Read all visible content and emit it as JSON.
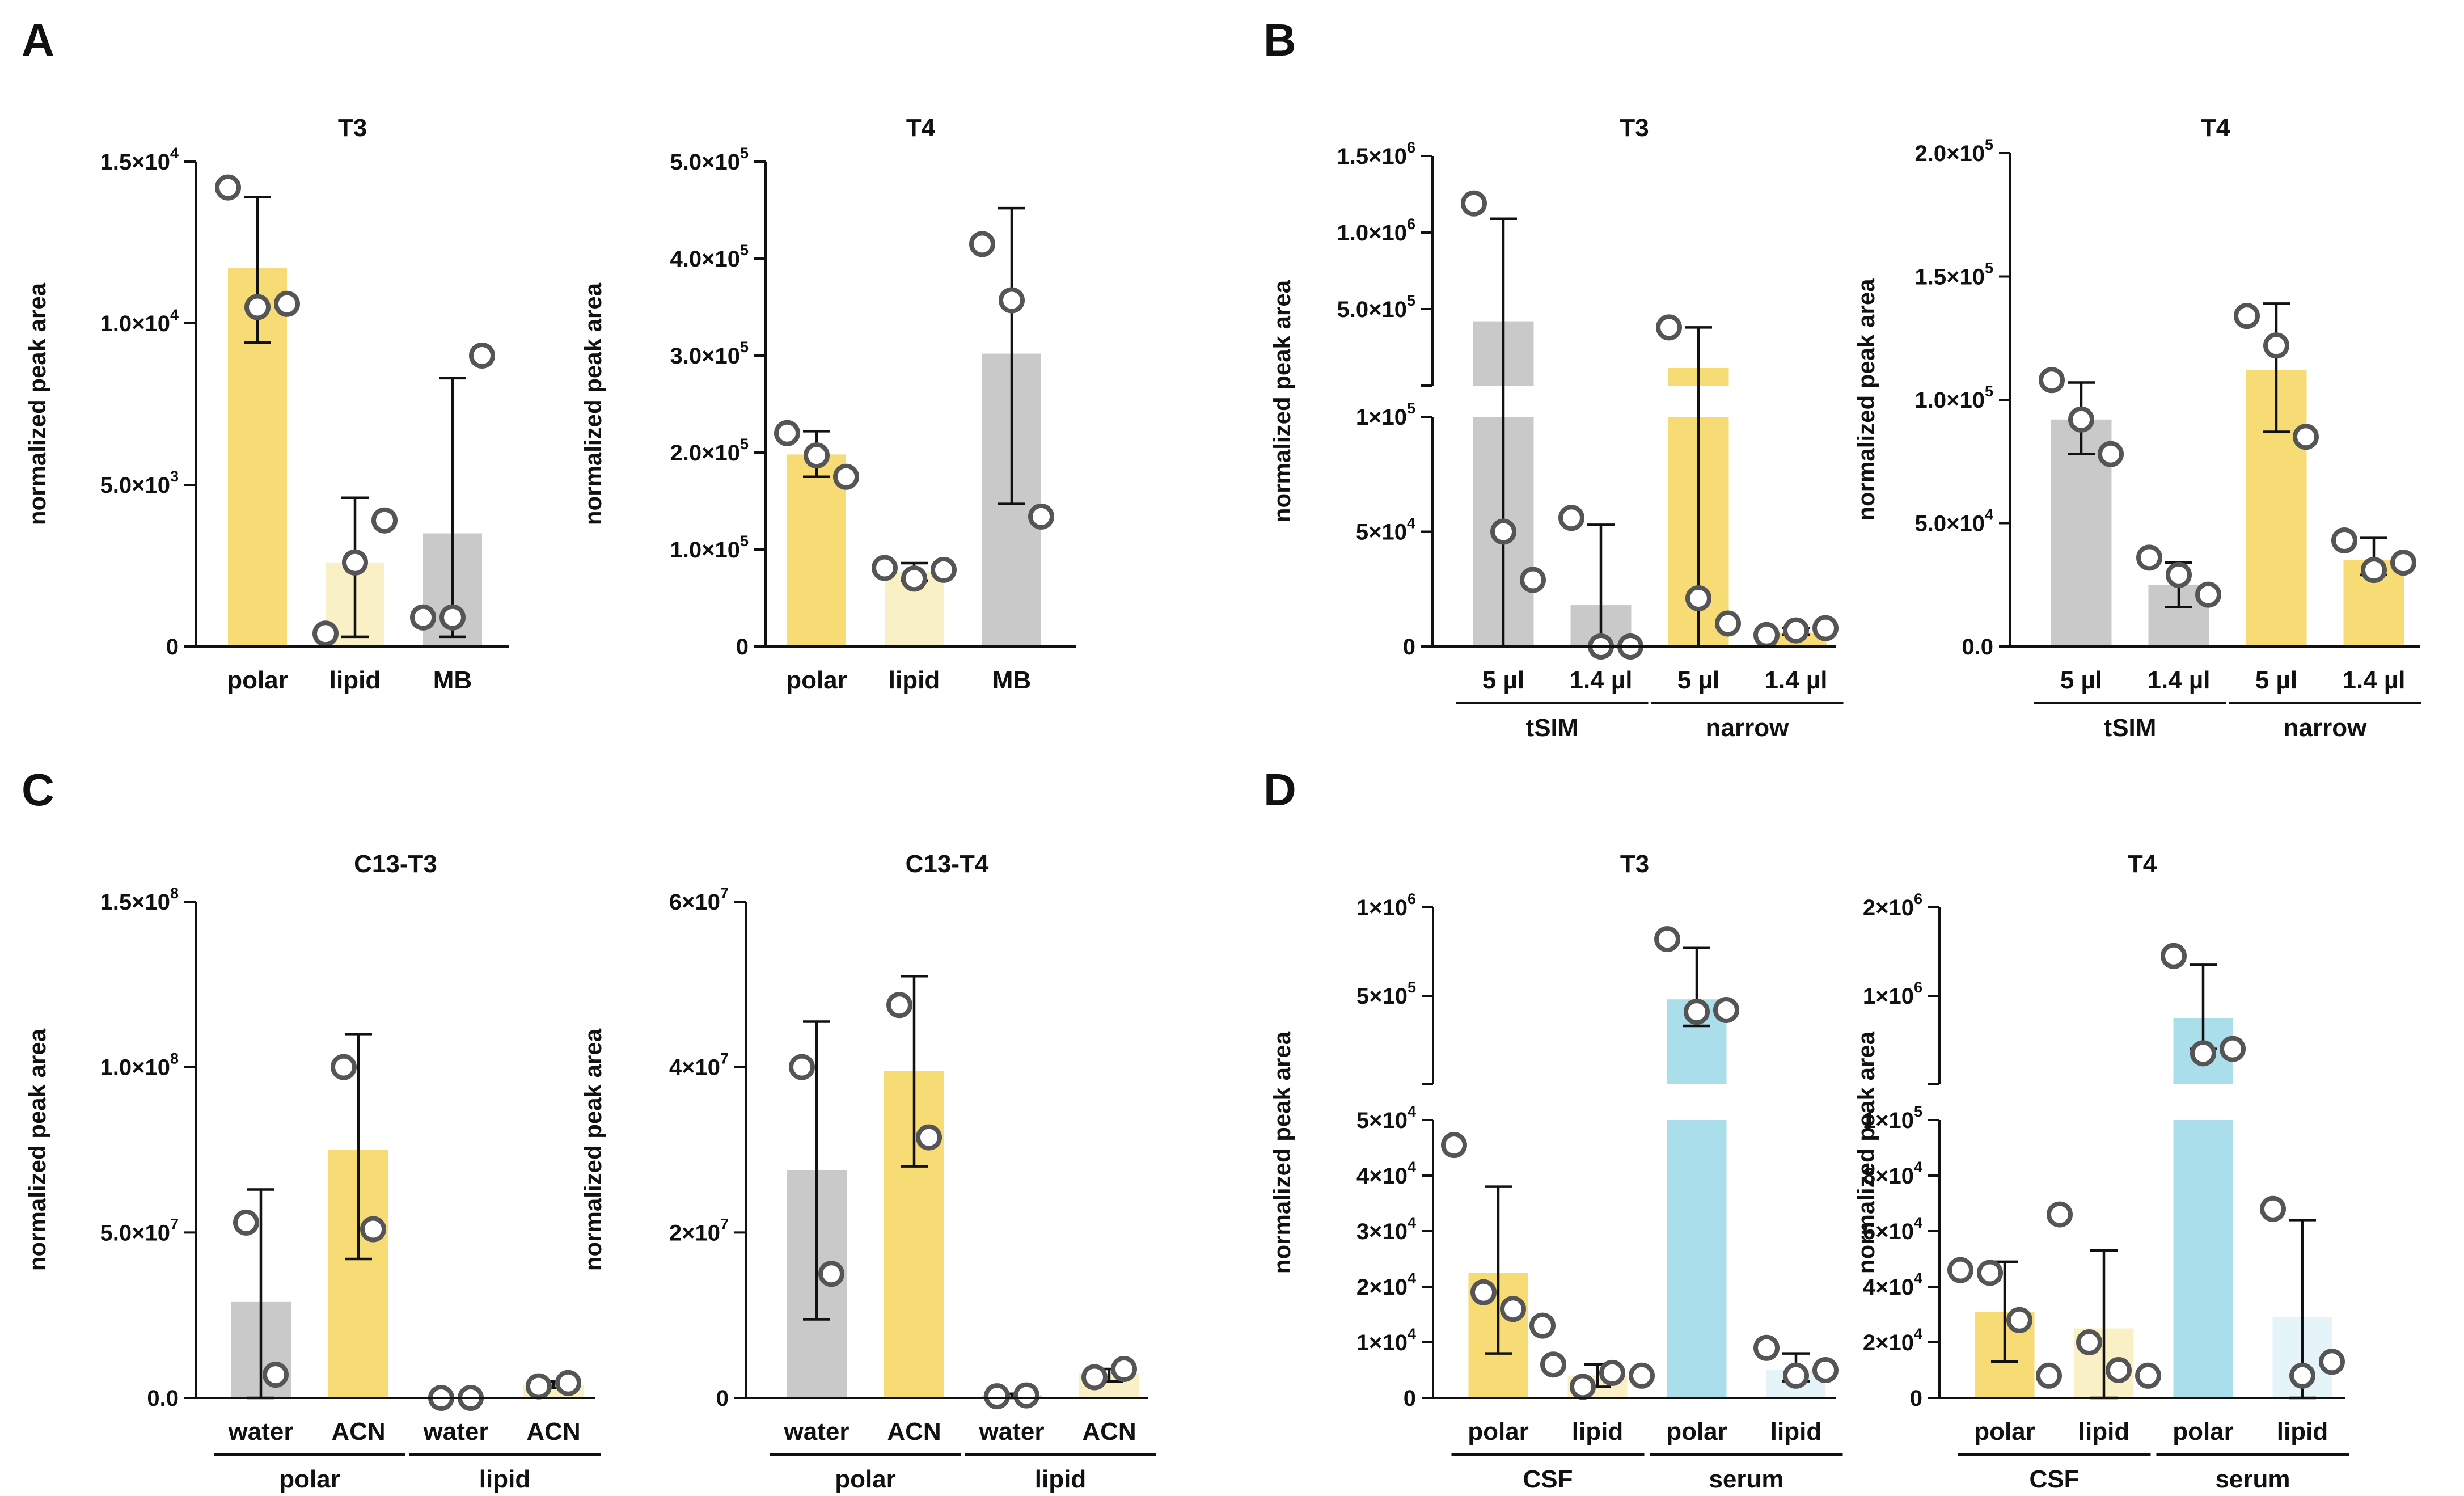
{
  "panel_labels": [
    "A",
    "B",
    "C",
    "D"
  ],
  "colors": {
    "yellow": "#F7DB74",
    "light_yellow": "#FAF0C6",
    "grey": "#C9C9C9",
    "blue": "#AADEEA",
    "light_blue": "#E4F4F8",
    "point_edge": "#555555"
  },
  "chart_data": [
    {
      "id": "A-T3",
      "panel": "A",
      "type": "bar",
      "title": "T3",
      "xlabel": "",
      "ylabel": "normalized peak area",
      "ylim": [
        0,
        15000
      ],
      "y_ticks": [
        {
          "v": 0,
          "m": "0",
          "e": ""
        },
        {
          "v": 5000,
          "m": "5.0×10",
          "e": "3"
        },
        {
          "v": 10000,
          "m": "1.0×10",
          "e": "4"
        },
        {
          "v": 15000,
          "m": "1.5×10",
          "e": "4"
        }
      ],
      "categories": [
        "polar",
        "lipid",
        "MB"
      ],
      "bars": [
        {
          "label": "polar",
          "value": 11700,
          "color": "yellow",
          "err": [
            9400,
            13900
          ],
          "points": [
            14200,
            10500,
            10600
          ]
        },
        {
          "label": "lipid",
          "value": 2600,
          "color": "light_yellow",
          "err": [
            300,
            4600
          ],
          "points": [
            400,
            2600,
            3900
          ]
        },
        {
          "label": "MB",
          "value": 3500,
          "color": "grey",
          "err": [
            300,
            8300
          ],
          "points": [
            900,
            900,
            9000
          ]
        }
      ]
    },
    {
      "id": "A-T4",
      "panel": "A",
      "type": "bar",
      "title": "T4",
      "xlabel": "",
      "ylabel": "normalized peak area",
      "ylim": [
        0,
        500000
      ],
      "y_ticks": [
        {
          "v": 0,
          "m": "0",
          "e": ""
        },
        {
          "v": 100000,
          "m": "1.0×10",
          "e": "5"
        },
        {
          "v": 200000,
          "m": "2.0×10",
          "e": "5"
        },
        {
          "v": 300000,
          "m": "3.0×10",
          "e": "5"
        },
        {
          "v": 400000,
          "m": "4.0×10",
          "e": "5"
        },
        {
          "v": 500000,
          "m": "5.0×10",
          "e": "5"
        }
      ],
      "categories": [
        "polar",
        "lipid",
        "MB"
      ],
      "bars": [
        {
          "label": "polar",
          "value": 198000,
          "color": "yellow",
          "err": [
            175000,
            222000
          ],
          "points": [
            220000,
            197000,
            175000
          ]
        },
        {
          "label": "lipid",
          "value": 77000,
          "color": "light_yellow",
          "err": [
            68000,
            86000
          ],
          "points": [
            81000,
            70000,
            79000
          ]
        },
        {
          "label": "MB",
          "value": 302000,
          "color": "grey",
          "err": [
            147000,
            452000
          ],
          "points": [
            415000,
            357000,
            134000
          ]
        }
      ]
    },
    {
      "id": "B-T3",
      "panel": "B",
      "type": "bar",
      "title": "T3",
      "xlabel": "",
      "ylabel": "normalized peak area",
      "y_break": {
        "lower": [
          0,
          100000
        ],
        "upper": [
          0,
          1500000
        ]
      },
      "y_ticks": [
        {
          "v": 0,
          "m": "0",
          "e": "",
          "seg": "lower"
        },
        {
          "v": 50000,
          "m": "5×10",
          "e": "4",
          "seg": "lower"
        },
        {
          "v": 100000,
          "m": "1×10",
          "e": "5",
          "seg": "lower"
        },
        {
          "v": 500000,
          "m": "5.0×10",
          "e": "5",
          "seg": "upper"
        },
        {
          "v": 1000000,
          "m": "1.0×10",
          "e": "6",
          "seg": "upper"
        },
        {
          "v": 1500000,
          "m": "1.5×10",
          "e": "6",
          "seg": "upper"
        }
      ],
      "categories": [
        "5 µl",
        "1.4 µl",
        "5 µl",
        "1.4 µl"
      ],
      "groups": [
        {
          "label": "tSIM",
          "span": [
            0,
            1
          ]
        },
        {
          "label": "narrow",
          "span": [
            2,
            3
          ]
        }
      ],
      "bars": [
        {
          "label": "5 µl",
          "value": 420000,
          "color": "grey",
          "err": [
            0,
            1090000
          ],
          "points": [
            1190000,
            50000,
            29000
          ]
        },
        {
          "label": "1.4 µl",
          "value": 18000,
          "color": "grey",
          "err": [
            0,
            53000
          ],
          "points": [
            56000,
            0,
            0
          ]
        },
        {
          "label": "5 µl",
          "value": 115000,
          "color": "yellow",
          "err": [
            0,
            380000
          ],
          "points": [
            380000,
            21000,
            10000
          ]
        },
        {
          "label": "1.4 µl",
          "value": 6000,
          "color": "yellow",
          "err": [
            5000,
            8000
          ],
          "points": [
            5000,
            7000,
            8000
          ]
        }
      ]
    },
    {
      "id": "B-T4",
      "panel": "B",
      "type": "bar",
      "title": "T4",
      "xlabel": "",
      "ylabel": "normalized peak area",
      "ylim": [
        0,
        200000
      ],
      "y_ticks": [
        {
          "v": 0,
          "m": "0.0",
          "e": ""
        },
        {
          "v": 50000,
          "m": "5.0×10",
          "e": "4"
        },
        {
          "v": 100000,
          "m": "1.0×10",
          "e": "5"
        },
        {
          "v": 150000,
          "m": "1.5×10",
          "e": "5"
        },
        {
          "v": 200000,
          "m": "2.0×10",
          "e": "5"
        }
      ],
      "categories": [
        "5 µl",
        "1.4 µl",
        "5 µl",
        "1.4 µl"
      ],
      "groups": [
        {
          "label": "tSIM",
          "span": [
            0,
            1
          ]
        },
        {
          "label": "narrow",
          "span": [
            2,
            3
          ]
        }
      ],
      "bars": [
        {
          "label": "5 µl",
          "value": 92000,
          "color": "grey",
          "err": [
            78000,
            107000
          ],
          "points": [
            108000,
            92000,
            78000
          ]
        },
        {
          "label": "1.4 µl",
          "value": 25000,
          "color": "grey",
          "err": [
            16000,
            34000
          ],
          "points": [
            36000,
            29000,
            21000
          ]
        },
        {
          "label": "5 µl",
          "value": 112000,
          "color": "yellow",
          "err": [
            87000,
            139000
          ],
          "points": [
            134000,
            122000,
            85000
          ]
        },
        {
          "label": "1.4 µl",
          "value": 35000,
          "color": "yellow",
          "err": [
            29000,
            44000
          ],
          "points": [
            43000,
            31000,
            34000
          ]
        }
      ]
    },
    {
      "id": "C-C13-T3",
      "panel": "C",
      "type": "bar",
      "title": "C13-T3",
      "xlabel": "",
      "ylabel": "normalized peak area",
      "ylim": [
        0,
        150000000
      ],
      "y_ticks": [
        {
          "v": 0,
          "m": "0.0",
          "e": ""
        },
        {
          "v": 50000000,
          "m": "5.0×10",
          "e": "7"
        },
        {
          "v": 100000000,
          "m": "1.0×10",
          "e": "8"
        },
        {
          "v": 150000000,
          "m": "1.5×10",
          "e": "8"
        }
      ],
      "categories": [
        "water",
        "ACN",
        "water",
        "ACN"
      ],
      "groups": [
        {
          "label": "polar",
          "span": [
            0,
            1
          ]
        },
        {
          "label": "lipid",
          "span": [
            2,
            3
          ]
        }
      ],
      "bars": [
        {
          "label": "water",
          "value": 29000000,
          "color": "grey",
          "err": [
            0,
            63000000
          ],
          "points": [
            53000000,
            7000000
          ]
        },
        {
          "label": "ACN",
          "value": 75000000,
          "color": "yellow",
          "err": [
            42000000,
            110000000
          ],
          "points": [
            100000000,
            51000000
          ]
        },
        {
          "label": "water",
          "value": 0,
          "color": "grey",
          "err": [
            0,
            0
          ],
          "points": [
            0,
            0
          ]
        },
        {
          "label": "ACN",
          "value": 4000000,
          "color": "light_yellow",
          "err": [
            3000000,
            5000000
          ],
          "points": [
            3500000,
            4500000
          ]
        }
      ]
    },
    {
      "id": "C-C13-T4",
      "panel": "C",
      "type": "bar",
      "title": "C13-T4",
      "xlabel": "",
      "ylabel": "normalized peak area",
      "ylim": [
        0,
        60000000
      ],
      "y_ticks": [
        {
          "v": 0,
          "m": "0",
          "e": ""
        },
        {
          "v": 20000000,
          "m": "2×10",
          "e": "7"
        },
        {
          "v": 40000000,
          "m": "4×10",
          "e": "7"
        },
        {
          "v": 60000000,
          "m": "6×10",
          "e": "7"
        }
      ],
      "categories": [
        "water",
        "ACN",
        "water",
        "ACN"
      ],
      "groups": [
        {
          "label": "polar",
          "span": [
            0,
            1
          ]
        },
        {
          "label": "lipid",
          "span": [
            2,
            3
          ]
        }
      ],
      "bars": [
        {
          "label": "water",
          "value": 27500000,
          "color": "grey",
          "err": [
            9500000,
            45500000
          ],
          "points": [
            40000000,
            15000000
          ]
        },
        {
          "label": "ACN",
          "value": 39500000,
          "color": "yellow",
          "err": [
            28000000,
            51000000
          ],
          "points": [
            47500000,
            31500000
          ]
        },
        {
          "label": "water",
          "value": 300000,
          "color": "grey",
          "err": [
            0,
            500000
          ],
          "points": [
            200000,
            300000
          ]
        },
        {
          "label": "ACN",
          "value": 3000000,
          "color": "light_yellow",
          "err": [
            2000000,
            3500000
          ],
          "points": [
            2500000,
            3500000
          ]
        }
      ]
    },
    {
      "id": "D-T3",
      "panel": "D",
      "type": "bar",
      "title": "T3",
      "xlabel": "",
      "ylabel": "normalized peak area",
      "y_break": {
        "lower": [
          0,
          50000
        ],
        "upper": [
          0,
          1000000
        ]
      },
      "y_ticks": [
        {
          "v": 0,
          "m": "0",
          "e": "",
          "seg": "lower"
        },
        {
          "v": 10000,
          "m": "1×10",
          "e": "4",
          "seg": "lower"
        },
        {
          "v": 20000,
          "m": "2×10",
          "e": "4",
          "seg": "lower"
        },
        {
          "v": 30000,
          "m": "3×10",
          "e": "4",
          "seg": "lower"
        },
        {
          "v": 40000,
          "m": "4×10",
          "e": "4",
          "seg": "lower"
        },
        {
          "v": 50000,
          "m": "5×10",
          "e": "4",
          "seg": "lower"
        },
        {
          "v": 500000,
          "m": "5×10",
          "e": "5",
          "seg": "upper"
        },
        {
          "v": 1000000,
          "m": "1×10",
          "e": "6",
          "seg": "upper"
        }
      ],
      "categories": [
        "polar",
        "lipid",
        "polar",
        "lipid"
      ],
      "groups": [
        {
          "label": "CSF",
          "span": [
            0,
            1
          ]
        },
        {
          "label": "serum",
          "span": [
            2,
            3
          ]
        }
      ],
      "bars": [
        {
          "label": "polar",
          "value": 22500,
          "color": "yellow",
          "err": [
            8000,
            38000
          ],
          "points": [
            45500,
            19000,
            16000,
            13000
          ]
        },
        {
          "label": "lipid",
          "value": 4000,
          "color": "light_yellow",
          "err": [
            2000,
            6000
          ],
          "points": [
            6000,
            2000,
            4500,
            4000
          ]
        },
        {
          "label": "polar",
          "value": 480000,
          "color": "blue",
          "err": [
            330000,
            770000
          ],
          "points": [
            820000,
            410000,
            420000
          ]
        },
        {
          "label": "lipid",
          "value": 5000,
          "color": "light_blue",
          "err": [
            3000,
            8000
          ],
          "points": [
            9000,
            4000,
            5000
          ]
        }
      ]
    },
    {
      "id": "D-T4",
      "panel": "D",
      "type": "bar",
      "title": "T4",
      "xlabel": "",
      "ylabel": "normalized peak area",
      "y_break": {
        "lower": [
          0,
          100000
        ],
        "upper": [
          0,
          2000000
        ]
      },
      "y_ticks": [
        {
          "v": 0,
          "m": "0",
          "e": "",
          "seg": "lower"
        },
        {
          "v": 20000,
          "m": "2×10",
          "e": "4",
          "seg": "lower"
        },
        {
          "v": 40000,
          "m": "4×10",
          "e": "4",
          "seg": "lower"
        },
        {
          "v": 60000,
          "m": "6×10",
          "e": "4",
          "seg": "lower"
        },
        {
          "v": 80000,
          "m": "8×10",
          "e": "4",
          "seg": "lower"
        },
        {
          "v": 100000,
          "m": "1×10",
          "e": "5",
          "seg": "lower"
        },
        {
          "v": 1000000,
          "m": "1×10",
          "e": "6",
          "seg": "upper"
        },
        {
          "v": 2000000,
          "m": "2×10",
          "e": "6",
          "seg": "upper"
        }
      ],
      "categories": [
        "polar",
        "lipid",
        "polar",
        "lipid"
      ],
      "groups": [
        {
          "label": "CSF",
          "span": [
            0,
            1
          ]
        },
        {
          "label": "serum",
          "span": [
            2,
            3
          ]
        }
      ],
      "bars": [
        {
          "label": "polar",
          "value": 31000,
          "color": "yellow",
          "err": [
            13000,
            49000
          ],
          "points": [
            46000,
            45000,
            28000,
            8000
          ]
        },
        {
          "label": "lipid",
          "value": 25000,
          "color": "light_yellow",
          "err": [
            0,
            53000
          ],
          "points": [
            66000,
            20000,
            10000,
            8000
          ]
        },
        {
          "label": "polar",
          "value": 750000,
          "color": "blue",
          "err": [
            400000,
            1350000
          ],
          "points": [
            1450000,
            350000,
            400000
          ]
        },
        {
          "label": "lipid",
          "value": 29000,
          "color": "light_blue",
          "err": [
            0,
            64000
          ],
          "points": [
            68000,
            8000,
            13000
          ]
        }
      ]
    }
  ]
}
